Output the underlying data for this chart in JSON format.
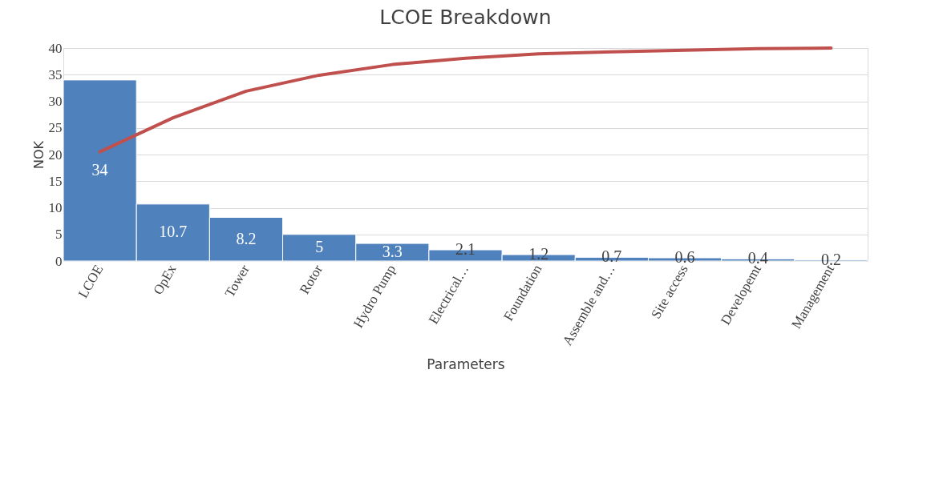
{
  "chart_data": {
    "type": "bar",
    "title": "LCOE Breakdown",
    "xlabel": "Parameters",
    "ylabel": "NOK",
    "categories": [
      "LCOE",
      "OpEx",
      "Tower",
      "Rotor",
      "Hydro Pump",
      "Electrical…",
      "Foundation",
      "Assemble and…",
      "Site access",
      "Developemt",
      "Management"
    ],
    "series": [
      {
        "color": "#4f81bd",
        "values": [
          34,
          10.7,
          8.2,
          5,
          3.3,
          2.1,
          1.2,
          0.7,
          0.6,
          0.4,
          0.2
        ],
        "value_labels": [
          "34",
          "10.7",
          "8.2",
          "5",
          "3.3",
          "2.1",
          "1.2",
          "0.7",
          "0.6",
          "0.4",
          "0.2"
        ]
      },
      {
        "type": "line",
        "color": "#c0504d",
        "values": [
          20.5,
          26.9,
          31.9,
          34.9,
          36.9,
          38.1,
          38.9,
          39.3,
          39.6,
          39.9,
          40
        ]
      }
    ],
    "ylim": [
      0,
      40
    ],
    "yticks": [
      0,
      5,
      10,
      15,
      20,
      25,
      30,
      35,
      40
    ],
    "grid": "y",
    "line_style": "solid",
    "marker": "none"
  }
}
